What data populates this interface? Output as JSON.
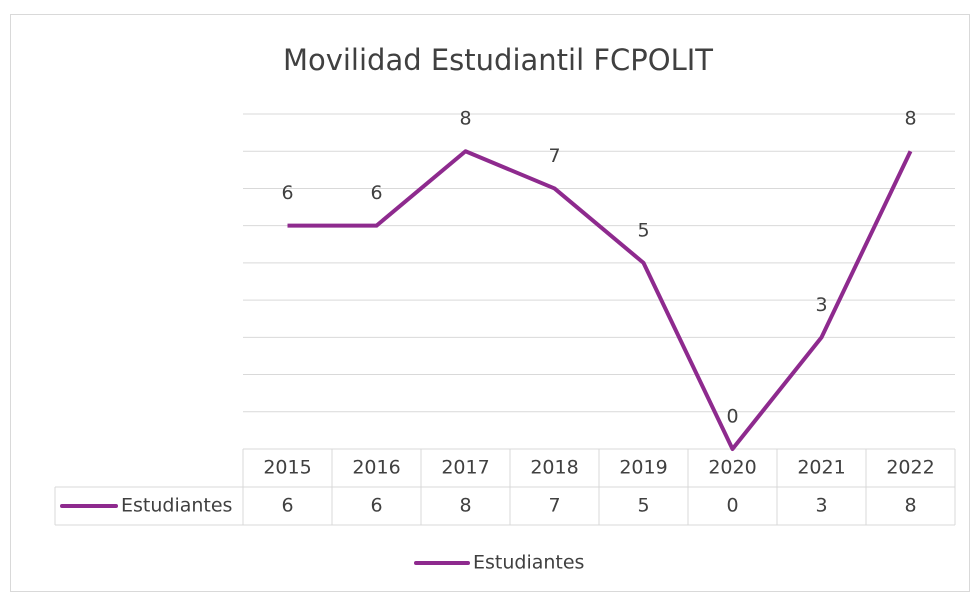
{
  "chart_data": {
    "type": "line",
    "title": "Movilidad Estudiantil FCPOLIT",
    "categories": [
      "2015",
      "2016",
      "2017",
      "2018",
      "2019",
      "2020",
      "2021",
      "2022"
    ],
    "series": [
      {
        "name": "Estudiantes",
        "color": "#8e2a8e",
        "values": [
          6,
          6,
          8,
          7,
          5,
          0,
          3,
          8
        ]
      }
    ],
    "ylim": [
      0,
      9
    ],
    "yticks": [
      0,
      1,
      2,
      3,
      4,
      5,
      6,
      7,
      8,
      9
    ],
    "grid": true,
    "legend": "bottom",
    "data_table": true
  }
}
